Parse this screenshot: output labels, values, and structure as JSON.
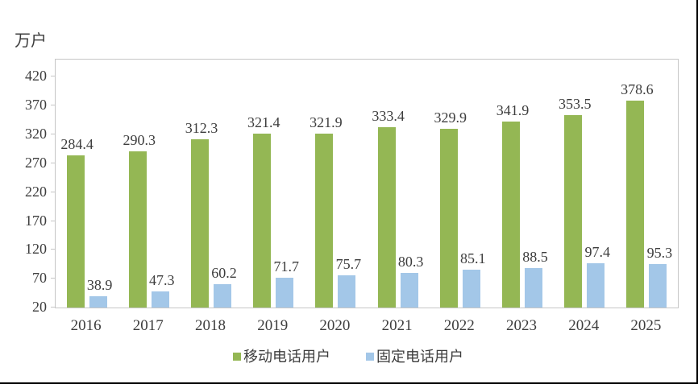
{
  "chart_data": {
    "type": "bar",
    "unit_label": "万户",
    "categories": [
      "2016",
      "2017",
      "2018",
      "2019",
      "2020",
      "2021",
      "2022",
      "2023",
      "2024",
      "2025"
    ],
    "series": [
      {
        "name": "移动电话用户",
        "color": "#94B754",
        "values": [
          284.4,
          290.3,
          312.3,
          321.4,
          321.9,
          333.4,
          329.9,
          341.9,
          353.5,
          378.6
        ]
      },
      {
        "name": "固定电话用户",
        "color": "#A3C7E8",
        "values": [
          38.9,
          47.3,
          60.2,
          71.7,
          75.7,
          80.3,
          85.1,
          88.5,
          97.4,
          95.3
        ]
      }
    ],
    "y_axis": {
      "min": 20,
      "max": 450,
      "tick_interval": 50,
      "ticks": [
        20,
        70,
        120,
        170,
        220,
        270,
        320,
        370,
        420
      ]
    },
    "grid": false,
    "data_labels": true,
    "legend": {
      "position": "bottom",
      "entries": [
        "移动电话用户",
        "固定电话用户"
      ]
    },
    "colors": {
      "text": "#3d3d3d",
      "axis": "#c6c6c6",
      "border": "#000000"
    }
  }
}
